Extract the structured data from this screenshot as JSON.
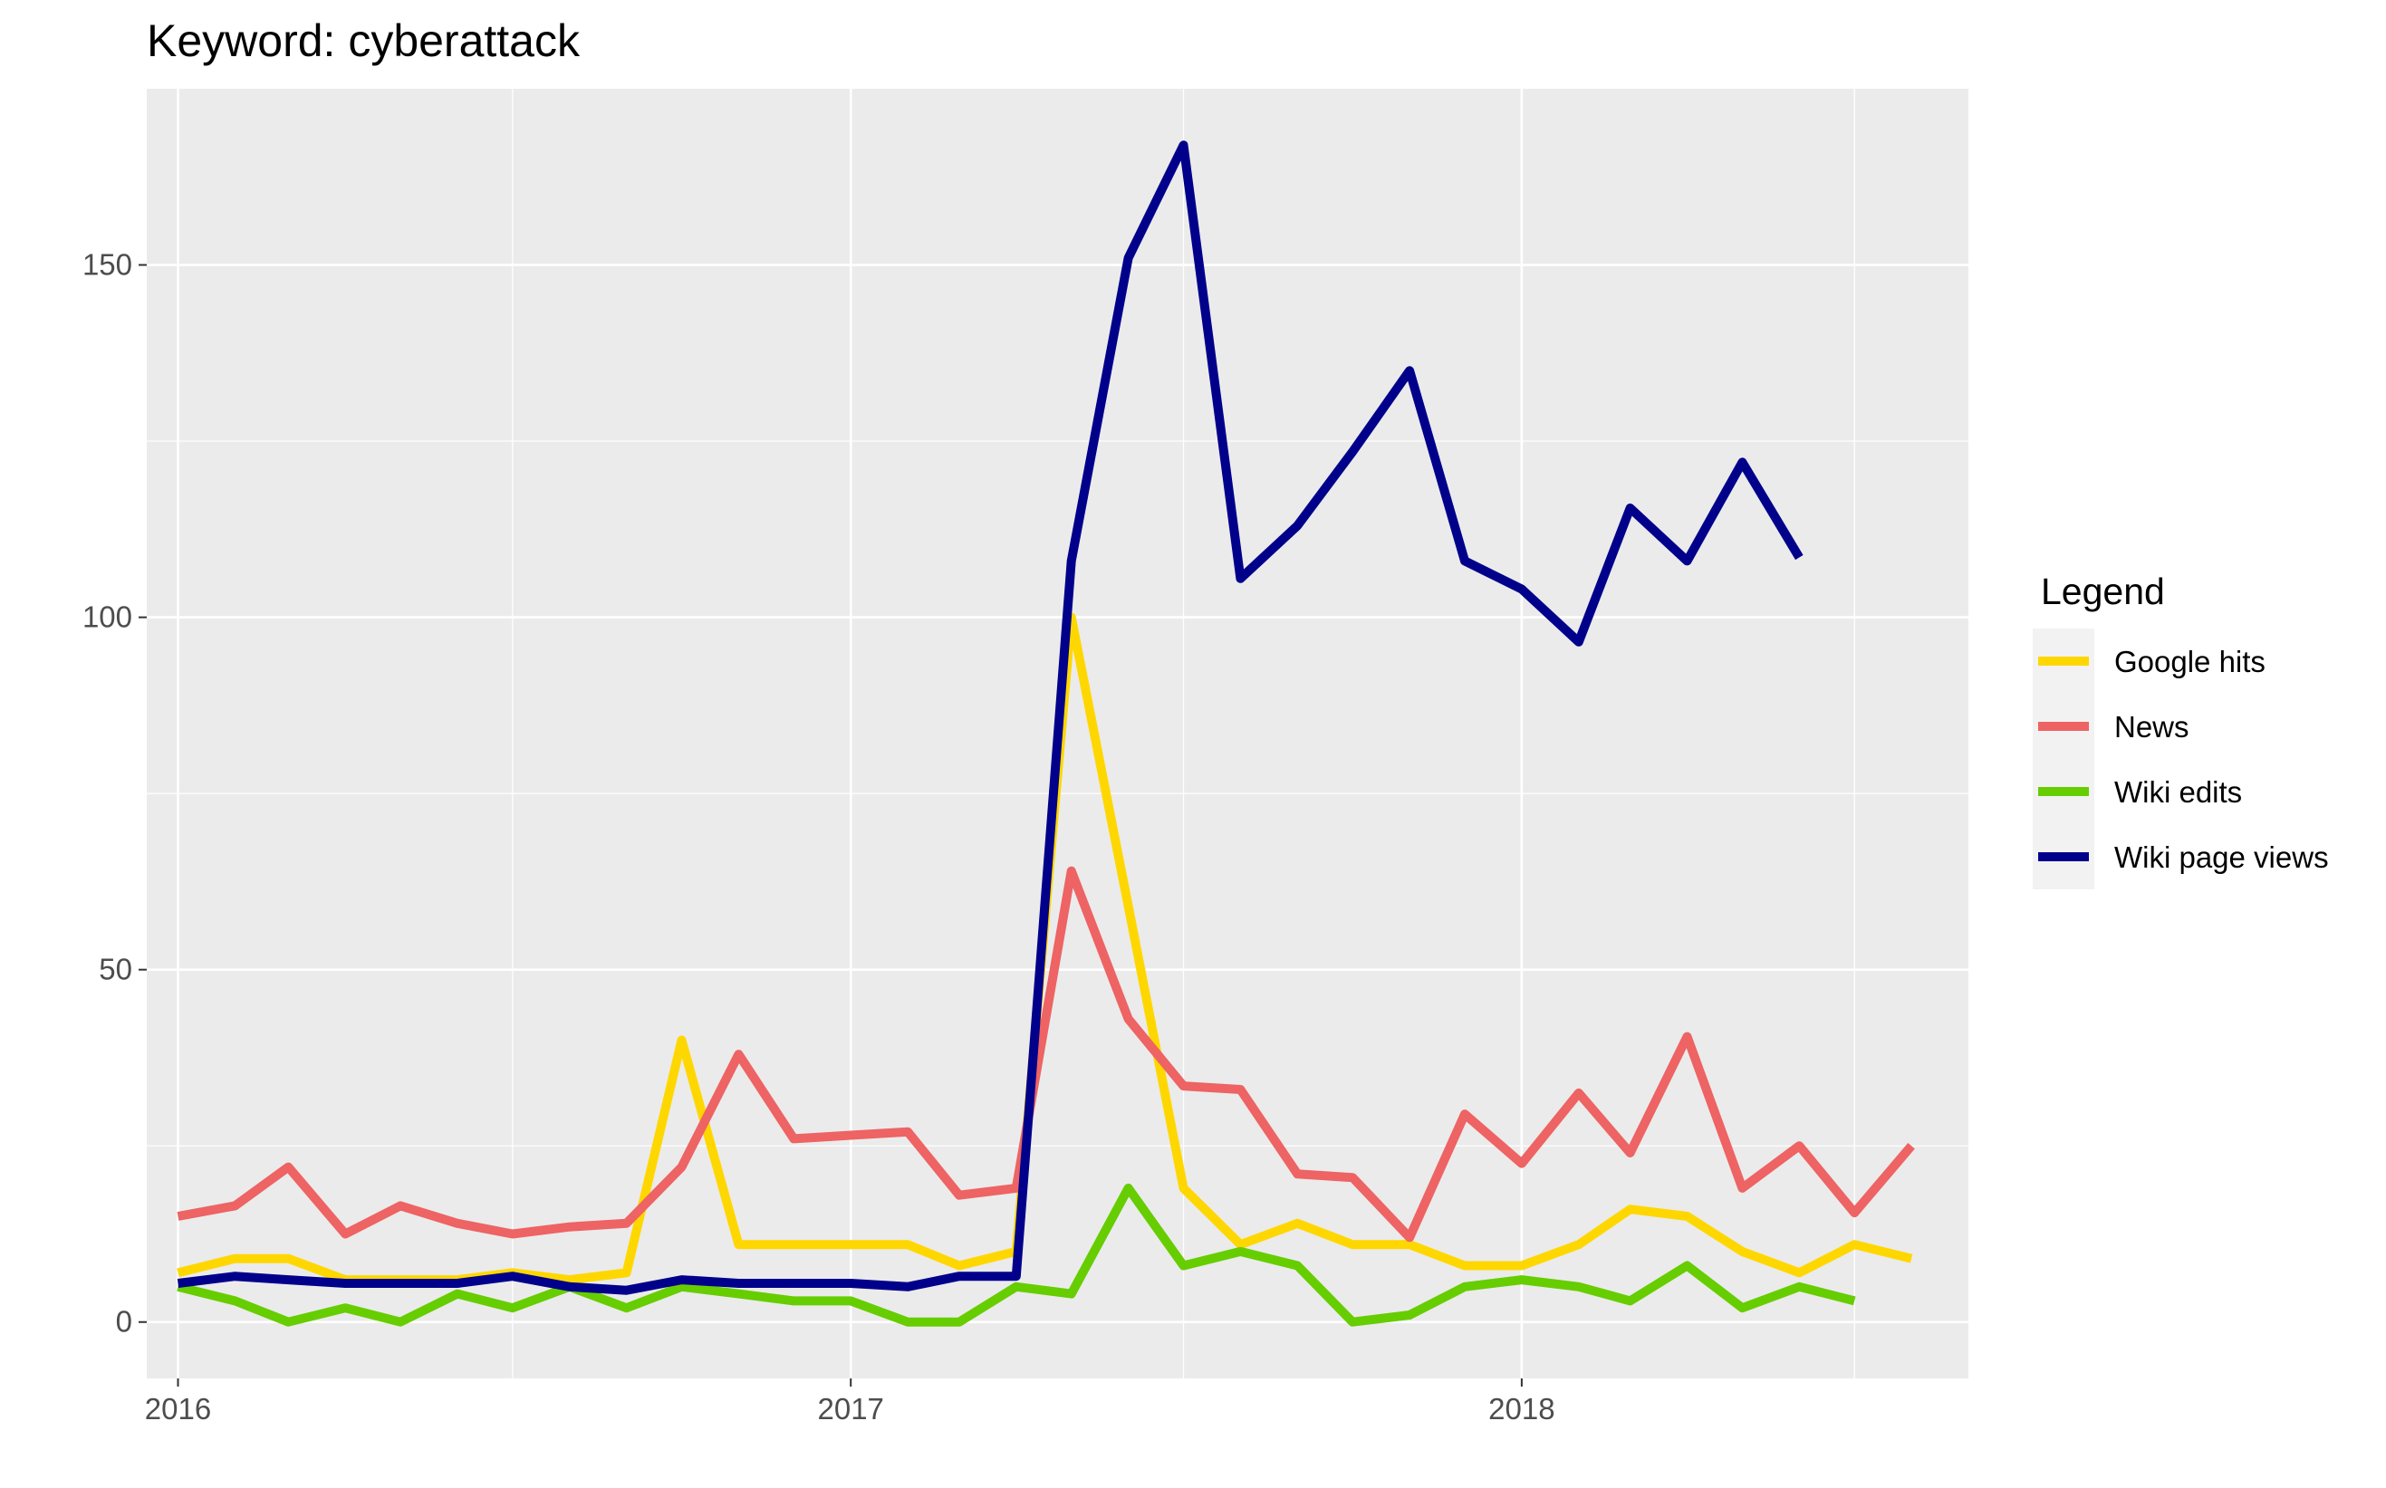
{
  "chart_data": {
    "type": "line",
    "title": "Keyword: cyberattack",
    "xlabel": "",
    "ylabel": "",
    "x_ticks": [
      "2016",
      "2017",
      "2018"
    ],
    "y_ticks": [
      0,
      50,
      100,
      150
    ],
    "xlim": [
      "2015-12-15",
      "2018-09-01"
    ],
    "ylim": [
      -8,
      175
    ],
    "grid": true,
    "legend": {
      "title": "Legend",
      "position": "right"
    },
    "x": [
      "2016-01",
      "2016-02",
      "2016-03",
      "2016-04",
      "2016-05",
      "2016-06",
      "2016-07",
      "2016-08",
      "2016-09",
      "2016-10",
      "2016-11",
      "2016-12",
      "2017-01",
      "2017-02",
      "2017-03",
      "2017-04",
      "2017-05",
      "2017-06",
      "2017-07",
      "2017-08",
      "2017-09",
      "2017-10",
      "2017-11",
      "2017-12",
      "2018-01",
      "2018-02",
      "2018-03",
      "2018-04",
      "2018-05",
      "2018-06",
      "2018-07",
      "2018-08"
    ],
    "series": [
      {
        "name": "Google hits",
        "color": "#FFD700",
        "values": [
          7,
          9,
          9,
          6,
          6,
          6,
          7,
          6,
          7,
          40,
          11,
          11,
          11,
          11,
          8,
          10,
          100,
          59,
          19,
          11,
          14,
          11,
          11,
          8,
          8,
          11,
          16,
          15,
          10,
          7,
          11,
          9
        ]
      },
      {
        "name": "News",
        "color": "#EE6363",
        "values": [
          15,
          16.5,
          22,
          12.5,
          16.5,
          14,
          12.5,
          13.5,
          14,
          22,
          38,
          26,
          26.5,
          27,
          18,
          19,
          64,
          43,
          33.5,
          33,
          21,
          20.5,
          12,
          29.5,
          22.5,
          32.5,
          24,
          40.5,
          19,
          25,
          15.5,
          25
        ]
      },
      {
        "name": "Wiki edits",
        "color": "#66CD00",
        "values": [
          5,
          3,
          0,
          2,
          0,
          4,
          2,
          5,
          2,
          5,
          4,
          3,
          3,
          0,
          0,
          5,
          4,
          19,
          8,
          10,
          8,
          0,
          1,
          5,
          6,
          5,
          3,
          8,
          2,
          5,
          3,
          null
        ]
      },
      {
        "name": "Wiki page views",
        "color": "#00008B",
        "values": [
          5.5,
          6.5,
          6,
          5.5,
          5.5,
          5.5,
          6.5,
          5,
          4.5,
          6,
          5.5,
          5.5,
          5.5,
          5,
          6.5,
          6.5,
          108,
          151,
          167,
          105.5,
          113,
          123.5,
          135,
          108,
          104,
          96.5,
          115.5,
          108,
          122,
          108.5,
          null,
          null
        ]
      }
    ]
  }
}
